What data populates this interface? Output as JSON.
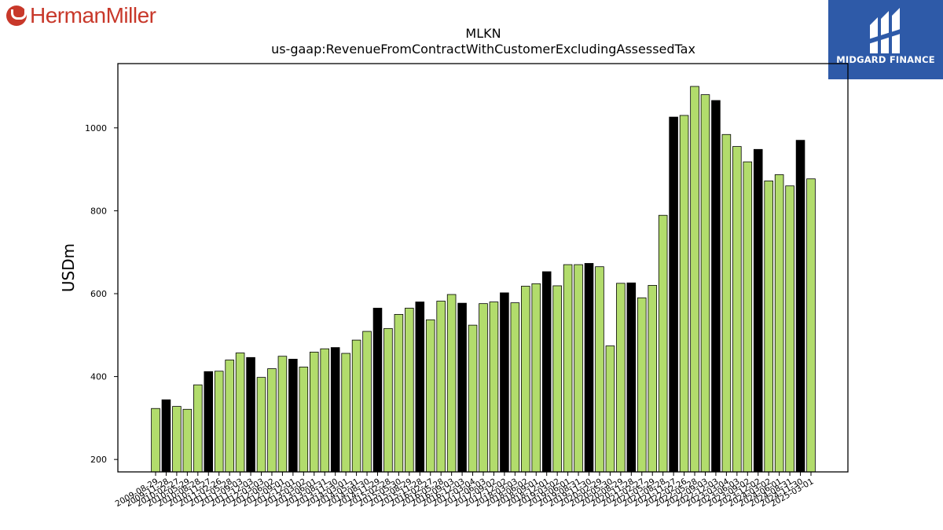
{
  "logos": {
    "left": {
      "text": "HermanMiller",
      "color": "#c8382a"
    },
    "right": {
      "text": "MIDGARD FINANCE",
      "background": "#2e5aa8"
    }
  },
  "chart_data": {
    "type": "bar",
    "title": "MLKN",
    "subtitle": "us-gaap:RevenueFromContractWithCustomerExcludingAssessedTax",
    "xlabel": "",
    "ylabel": "USDm",
    "ylim": [
      170,
      1155
    ],
    "yticks": [
      200,
      400,
      600,
      800,
      1000
    ],
    "grid": false,
    "colors": {
      "quarter": "#b2dc6c",
      "annual": "#000000"
    },
    "categories": [
      "2009-08-29",
      "2009-11-28",
      "2010-02-27",
      "2010-05-29",
      "2010-08-28",
      "2010-11-27",
      "2011-02-26",
      "2011-05-28",
      "2011-09-03",
      "2011-12-03",
      "2012-03-03",
      "2012-06-02",
      "2012-09-01",
      "2012-12-01",
      "2013-03-02",
      "2013-06-01",
      "2013-08-31",
      "2013-11-30",
      "2014-03-01",
      "2014-05-31",
      "2014-08-30",
      "2014-11-29",
      "2015-02-28",
      "2015-05-30",
      "2015-08-29",
      "2015-11-28",
      "2016-02-27",
      "2016-05-28",
      "2016-09-03",
      "2016-12-03",
      "2017-03-04",
      "2017-06-03",
      "2017-09-02",
      "2017-12-02",
      "2018-03-03",
      "2018-06-02",
      "2018-09-01",
      "2018-12-01",
      "2019-03-02",
      "2019-06-01",
      "2019-08-31",
      "2019-11-30",
      "2020-02-29",
      "2020-05-30",
      "2020-08-29",
      "2020-11-28",
      "2021-02-27",
      "2021-05-29",
      "2021-08-28",
      "2021-11-27",
      "2022-02-26",
      "2022-05-28",
      "2022-09-03",
      "2022-12-03",
      "2023-03-04",
      "2023-06-03",
      "2023-09-02",
      "2023-12-02",
      "2024-03-02",
      "2024-06-01",
      "2024-08-31",
      "2024-11-30",
      "2025-03-01"
    ],
    "values": [
      323,
      344,
      328,
      321,
      380,
      412,
      413,
      440,
      457,
      446,
      398,
      419,
      449,
      442,
      423,
      459,
      467,
      470,
      456,
      488,
      509,
      565,
      516,
      550,
      565,
      580,
      537,
      582,
      598,
      577,
      524,
      576,
      580,
      602,
      578,
      618,
      624,
      653,
      619,
      670,
      670,
      673,
      665,
      474,
      625,
      626,
      590,
      620,
      789,
      1026,
      1030,
      1100,
      1080,
      1066,
      984,
      955,
      918,
      948,
      872,
      887,
      860,
      970,
      877
    ],
    "kinds": [
      "q",
      "a",
      "q",
      "q",
      "q",
      "a",
      "q",
      "q",
      "q",
      "a",
      "q",
      "q",
      "q",
      "a",
      "q",
      "q",
      "q",
      "a",
      "q",
      "q",
      "q",
      "a",
      "q",
      "q",
      "q",
      "a",
      "q",
      "q",
      "q",
      "a",
      "q",
      "q",
      "q",
      "a",
      "q",
      "q",
      "q",
      "a",
      "q",
      "q",
      "q",
      "a",
      "q",
      "q",
      "q",
      "a",
      "q",
      "q",
      "q",
      "a",
      "q",
      "q",
      "q",
      "a",
      "q",
      "q",
      "q",
      "a",
      "q",
      "q",
      "q",
      "a",
      "q"
    ]
  }
}
